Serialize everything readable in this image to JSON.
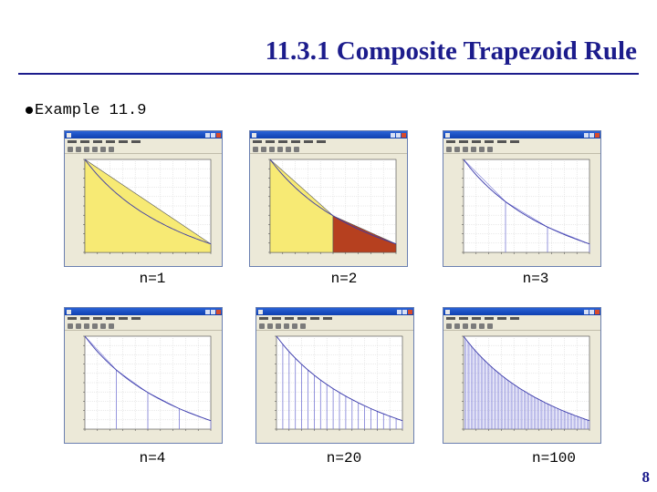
{
  "slide": {
    "title": "11.3.1 Composite Trapezoid Rule",
    "bullet": "Example 11.9",
    "page_number": "8",
    "colors": {
      "title": "#1c1c8c",
      "fill1": "#f7ea74",
      "fill2": "#b6401f",
      "curve": "#3a3aaa",
      "lines": "#7b7bd6"
    }
  },
  "panels": [
    {
      "label": "n=1",
      "n": 1,
      "style": "fill",
      "icons": [
        "figure-window-icon",
        "close-icon"
      ]
    },
    {
      "label": "n=2",
      "n": 2,
      "style": "fill",
      "icons": [
        "figure-window-icon",
        "close-icon"
      ]
    },
    {
      "label": "n=3",
      "n": 3,
      "style": "lines",
      "icons": [
        "figure-window-icon",
        "close-icon"
      ]
    },
    {
      "label": "n=4",
      "n": 4,
      "style": "lines",
      "icons": [
        "figure-window-icon",
        "close-icon"
      ]
    },
    {
      "label": "n=20",
      "n": 20,
      "style": "lines",
      "icons": [
        "figure-window-icon",
        "close-icon"
      ]
    },
    {
      "label": "n=100",
      "n": 100,
      "style": "lines",
      "icons": [
        "figure-window-icon",
        "close-icon"
      ]
    }
  ]
}
